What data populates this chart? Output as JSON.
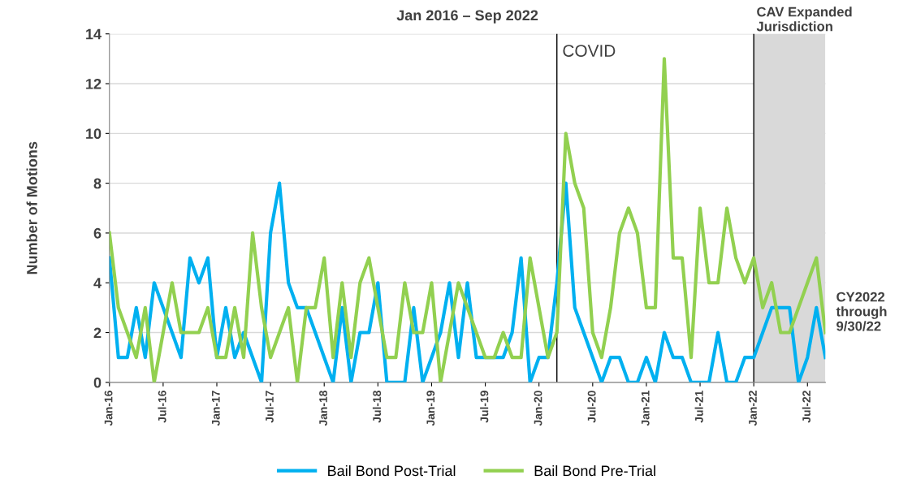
{
  "chart_data": {
    "type": "line",
    "title": "Jan 2016 – Sep 2022",
    "ylabel": "Number of Motions",
    "x": [
      "2016-01",
      "2016-02",
      "2016-03",
      "2016-04",
      "2016-05",
      "2016-06",
      "2016-07",
      "2016-08",
      "2016-09",
      "2016-10",
      "2016-11",
      "2016-12",
      "2017-01",
      "2017-02",
      "2017-03",
      "2017-04",
      "2017-05",
      "2017-06",
      "2017-07",
      "2017-08",
      "2017-09",
      "2017-10",
      "2017-11",
      "2017-12",
      "2018-01",
      "2018-02",
      "2018-03",
      "2018-04",
      "2018-05",
      "2018-06",
      "2018-07",
      "2018-08",
      "2018-09",
      "2018-10",
      "2018-11",
      "2018-12",
      "2019-01",
      "2019-02",
      "2019-03",
      "2019-04",
      "2019-05",
      "2019-06",
      "2019-07",
      "2019-08",
      "2019-09",
      "2019-10",
      "2019-11",
      "2019-12",
      "2020-01",
      "2020-02",
      "2020-03",
      "2020-04",
      "2020-05",
      "2020-06",
      "2020-07",
      "2020-08",
      "2020-09",
      "2020-10",
      "2020-11",
      "2020-12",
      "2021-01",
      "2021-02",
      "2021-03",
      "2021-04",
      "2021-05",
      "2021-06",
      "2021-07",
      "2021-08",
      "2021-09",
      "2021-10",
      "2021-11",
      "2021-12",
      "2022-01",
      "2022-02",
      "2022-03",
      "2022-04",
      "2022-05",
      "2022-06",
      "2022-07",
      "2022-08",
      "2022-09"
    ],
    "series": [
      {
        "name": "Bail Bond Post-Trial",
        "color": "#00b0f0",
        "values": [
          5,
          1,
          1,
          3,
          1,
          4,
          3,
          2,
          1,
          5,
          4,
          5,
          1,
          3,
          1,
          2,
          1,
          0,
          6,
          8,
          4,
          3,
          3,
          2,
          1,
          0,
          3,
          0,
          2,
          2,
          4,
          0,
          0,
          0,
          3,
          0,
          1,
          2,
          4,
          1,
          4,
          1,
          1,
          1,
          1,
          2,
          5,
          0,
          1,
          1,
          4,
          8,
          3,
          2,
          1,
          0,
          1,
          1,
          0,
          0,
          1,
          0,
          2,
          1,
          1,
          0,
          0,
          0,
          2,
          0,
          0,
          1,
          1,
          2,
          3,
          3,
          3,
          0,
          1,
          3,
          1
        ]
      },
      {
        "name": "Bail Bond Pre-Trial",
        "color": "#92d050",
        "values": [
          6,
          3,
          2,
          1,
          3,
          0,
          2,
          4,
          2,
          2,
          2,
          3,
          1,
          1,
          3,
          1,
          6,
          3,
          1,
          2,
          3,
          0,
          3,
          3,
          5,
          1,
          4,
          1,
          4,
          5,
          3,
          1,
          1,
          4,
          2,
          2,
          4,
          0,
          2,
          4,
          3,
          2,
          1,
          1,
          2,
          1,
          1,
          5,
          3,
          1,
          2,
          10,
          8,
          7,
          2,
          1,
          3,
          6,
          7,
          6,
          3,
          3,
          13,
          5,
          5,
          1,
          7,
          4,
          4,
          7,
          5,
          4,
          5,
          3,
          4,
          2,
          2,
          3,
          4,
          5,
          2
        ]
      }
    ],
    "xlim": [
      "2016-01",
      "2022-09"
    ],
    "xticks": [
      {
        "value": "2016-01",
        "label": "Jan-16"
      },
      {
        "value": "2016-07",
        "label": "Jul-16"
      },
      {
        "value": "2017-01",
        "label": "Jan-17"
      },
      {
        "value": "2017-07",
        "label": "Jul-17"
      },
      {
        "value": "2018-01",
        "label": "Jan-18"
      },
      {
        "value": "2018-07",
        "label": "Jul-18"
      },
      {
        "value": "2019-01",
        "label": "Jan-19"
      },
      {
        "value": "2019-07",
        "label": "Jul-19"
      },
      {
        "value": "2020-01",
        "label": "Jan-20"
      },
      {
        "value": "2020-07",
        "label": "Jul-20"
      },
      {
        "value": "2021-01",
        "label": "Jan-21"
      },
      {
        "value": "2021-07",
        "label": "Jul-21"
      },
      {
        "value": "2022-01",
        "label": "Jan-22"
      },
      {
        "value": "2022-07",
        "label": "Jul-22"
      }
    ],
    "ylim": [
      0,
      14
    ],
    "yticks": [
      0,
      2,
      4,
      6,
      8,
      10,
      12,
      14
    ],
    "ref_lines": [
      {
        "axis": "x",
        "value": "2020-03",
        "label": "COVID",
        "color": "#000000"
      },
      {
        "axis": "x",
        "value": "2022-01",
        "color": "#000000"
      }
    ],
    "bands": [
      {
        "axis": "x",
        "from": "2022-01",
        "to": "2022-09",
        "label": "CAV Expanded Jurisdiction",
        "color": "#d9d9d9"
      }
    ],
    "annotations": [
      "CY2022 through 9/30/22"
    ],
    "grid": "y",
    "legend": "bottom",
    "marker": "none",
    "line_style": "solid"
  }
}
